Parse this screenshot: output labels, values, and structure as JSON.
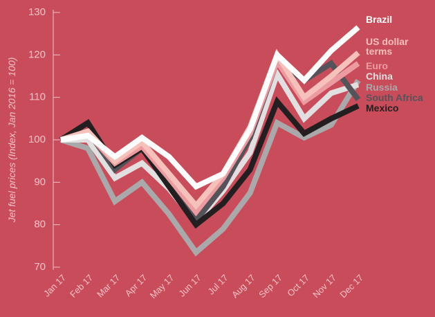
{
  "chart_data": {
    "type": "line",
    "y_label": "Jet fuel prices (Index, Jan 2016 = 100)",
    "categories": [
      "Jan 17",
      "Feb 17",
      "Mar 17",
      "Apr 17",
      "May 17",
      "Jun 17",
      "Jul 17",
      "Aug 17",
      "Sep 17",
      "Oct 17",
      "Nov 17",
      "Dec 17"
    ],
    "ylim": [
      70,
      130
    ],
    "yticks": [
      70,
      80,
      90,
      100,
      110,
      120,
      130
    ],
    "series": [
      {
        "name": "Russia",
        "color": "#a9a9ab",
        "values": [
          100,
          98,
          85.5,
          90,
          82.5,
          73.5,
          79,
          87.5,
          104,
          100.5,
          103.5,
          114
        ]
      },
      {
        "name": "China",
        "color": "#e2dfe0",
        "values": [
          100,
          100,
          91,
          94.5,
          88.5,
          80.5,
          88,
          97,
          115.5,
          105,
          111,
          113
        ]
      },
      {
        "name": "South Africa",
        "color": "#55535a",
        "values": [
          100,
          102,
          93,
          98,
          90,
          81,
          89,
          100.5,
          118.5,
          114,
          118,
          109.5
        ]
      },
      {
        "name": "Mexico",
        "color": "#231f20",
        "values": [
          100,
          104,
          94,
          98,
          89,
          80,
          85,
          93,
          109,
          101.5,
          105,
          108
        ]
      },
      {
        "name": "Euro",
        "color": "#ec9ca0",
        "values": [
          100,
          101.5,
          94.5,
          98.5,
          91,
          83,
          91,
          101.5,
          118.5,
          109,
          113.5,
          118
        ]
      },
      {
        "name": "US dollar terms",
        "color": "#f6c0bb",
        "values": [
          100,
          102,
          95,
          99.5,
          92,
          84.5,
          92,
          103,
          120,
          110,
          115,
          120.5
        ]
      },
      {
        "name": "Brazil",
        "color": "#ffffff",
        "values": [
          100,
          101,
          96,
          100.5,
          96,
          89,
          92,
          102.5,
          120,
          114,
          121,
          126.5
        ]
      }
    ]
  }
}
